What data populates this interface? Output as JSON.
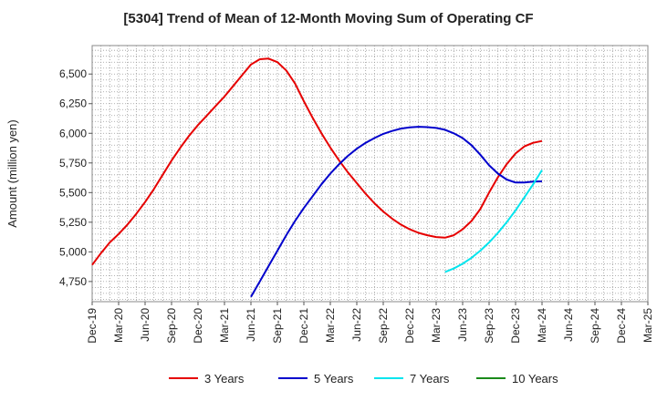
{
  "chart_data": {
    "type": "line",
    "title": "[5304]  Trend of Mean of 12-Month Moving Sum of Operating CF",
    "xlabel": "",
    "ylabel": "Amount (million yen)",
    "ylim": [
      4580,
      6740
    ],
    "yticks": [
      4750,
      5000,
      5250,
      5500,
      5750,
      6000,
      6250,
      6500
    ],
    "ytick_labels": [
      "4,750",
      "5,000",
      "5,250",
      "5,500",
      "5,750",
      "6,000",
      "6,250",
      "6,500"
    ],
    "x_tick_labels": [
      "Dec-19",
      "Mar-20",
      "Jun-20",
      "Sep-20",
      "Dec-20",
      "Mar-21",
      "Jun-21",
      "Sep-21",
      "Dec-21",
      "Mar-22",
      "Jun-22",
      "Sep-22",
      "Dec-22",
      "Mar-23",
      "Jun-23",
      "Sep-23",
      "Dec-23",
      "Mar-24",
      "Jun-24",
      "Sep-24",
      "Dec-24",
      "Mar-25"
    ],
    "grid": true,
    "legend_position": "bottom",
    "series": [
      {
        "name": "3 Years",
        "color": "#e60000",
        "points": [
          [
            0,
            4890
          ],
          [
            1,
            4990
          ],
          [
            2,
            5080
          ],
          [
            3,
            5150
          ],
          [
            4,
            5230
          ],
          [
            5,
            5320
          ],
          [
            6,
            5420
          ],
          [
            7,
            5530
          ],
          [
            8,
            5650
          ],
          [
            9,
            5770
          ],
          [
            10,
            5880
          ],
          [
            11,
            5980
          ],
          [
            12,
            6070
          ],
          [
            13,
            6150
          ],
          [
            14,
            6230
          ],
          [
            15,
            6310
          ],
          [
            16,
            6400
          ],
          [
            17,
            6490
          ],
          [
            18,
            6580
          ],
          [
            19,
            6625
          ],
          [
            20,
            6630
          ],
          [
            21,
            6600
          ],
          [
            22,
            6530
          ],
          [
            23,
            6420
          ],
          [
            24,
            6270
          ],
          [
            25,
            6130
          ],
          [
            26,
            6000
          ],
          [
            27,
            5880
          ],
          [
            28,
            5770
          ],
          [
            29,
            5670
          ],
          [
            30,
            5580
          ],
          [
            31,
            5490
          ],
          [
            32,
            5410
          ],
          [
            33,
            5340
          ],
          [
            34,
            5280
          ],
          [
            35,
            5230
          ],
          [
            36,
            5190
          ],
          [
            37,
            5160
          ],
          [
            38,
            5140
          ],
          [
            39,
            5125
          ],
          [
            40,
            5120
          ],
          [
            41,
            5140
          ],
          [
            42,
            5190
          ],
          [
            43,
            5260
          ],
          [
            44,
            5360
          ],
          [
            45,
            5500
          ],
          [
            46,
            5630
          ],
          [
            47,
            5740
          ],
          [
            48,
            5830
          ],
          [
            49,
            5890
          ],
          [
            50,
            5920
          ],
          [
            51,
            5935
          ]
        ]
      },
      {
        "name": "5 Years",
        "color": "#0000cc",
        "points": [
          [
            18,
            4620
          ],
          [
            19,
            4750
          ],
          [
            20,
            4880
          ],
          [
            21,
            5010
          ],
          [
            22,
            5140
          ],
          [
            23,
            5260
          ],
          [
            24,
            5370
          ],
          [
            25,
            5470
          ],
          [
            26,
            5570
          ],
          [
            27,
            5660
          ],
          [
            28,
            5740
          ],
          [
            29,
            5810
          ],
          [
            30,
            5870
          ],
          [
            31,
            5920
          ],
          [
            32,
            5960
          ],
          [
            33,
            5995
          ],
          [
            34,
            6020
          ],
          [
            35,
            6040
          ],
          [
            36,
            6050
          ],
          [
            37,
            6055
          ],
          [
            38,
            6052
          ],
          [
            39,
            6045
          ],
          [
            40,
            6030
          ],
          [
            41,
            6000
          ],
          [
            42,
            5960
          ],
          [
            43,
            5900
          ],
          [
            44,
            5820
          ],
          [
            45,
            5730
          ],
          [
            46,
            5660
          ],
          [
            47,
            5610
          ],
          [
            48,
            5585
          ],
          [
            49,
            5585
          ],
          [
            50,
            5592
          ],
          [
            51,
            5595
          ]
        ]
      },
      {
        "name": "7 Years",
        "color": "#00e5ee",
        "points": [
          [
            40,
            4830
          ],
          [
            41,
            4860
          ],
          [
            42,
            4900
          ],
          [
            43,
            4950
          ],
          [
            44,
            5010
          ],
          [
            45,
            5080
          ],
          [
            46,
            5160
          ],
          [
            47,
            5250
          ],
          [
            48,
            5350
          ],
          [
            49,
            5460
          ],
          [
            50,
            5570
          ],
          [
            51,
            5690
          ]
        ]
      },
      {
        "name": "10 Years",
        "color": "#1a8a1a",
        "points": []
      }
    ]
  }
}
